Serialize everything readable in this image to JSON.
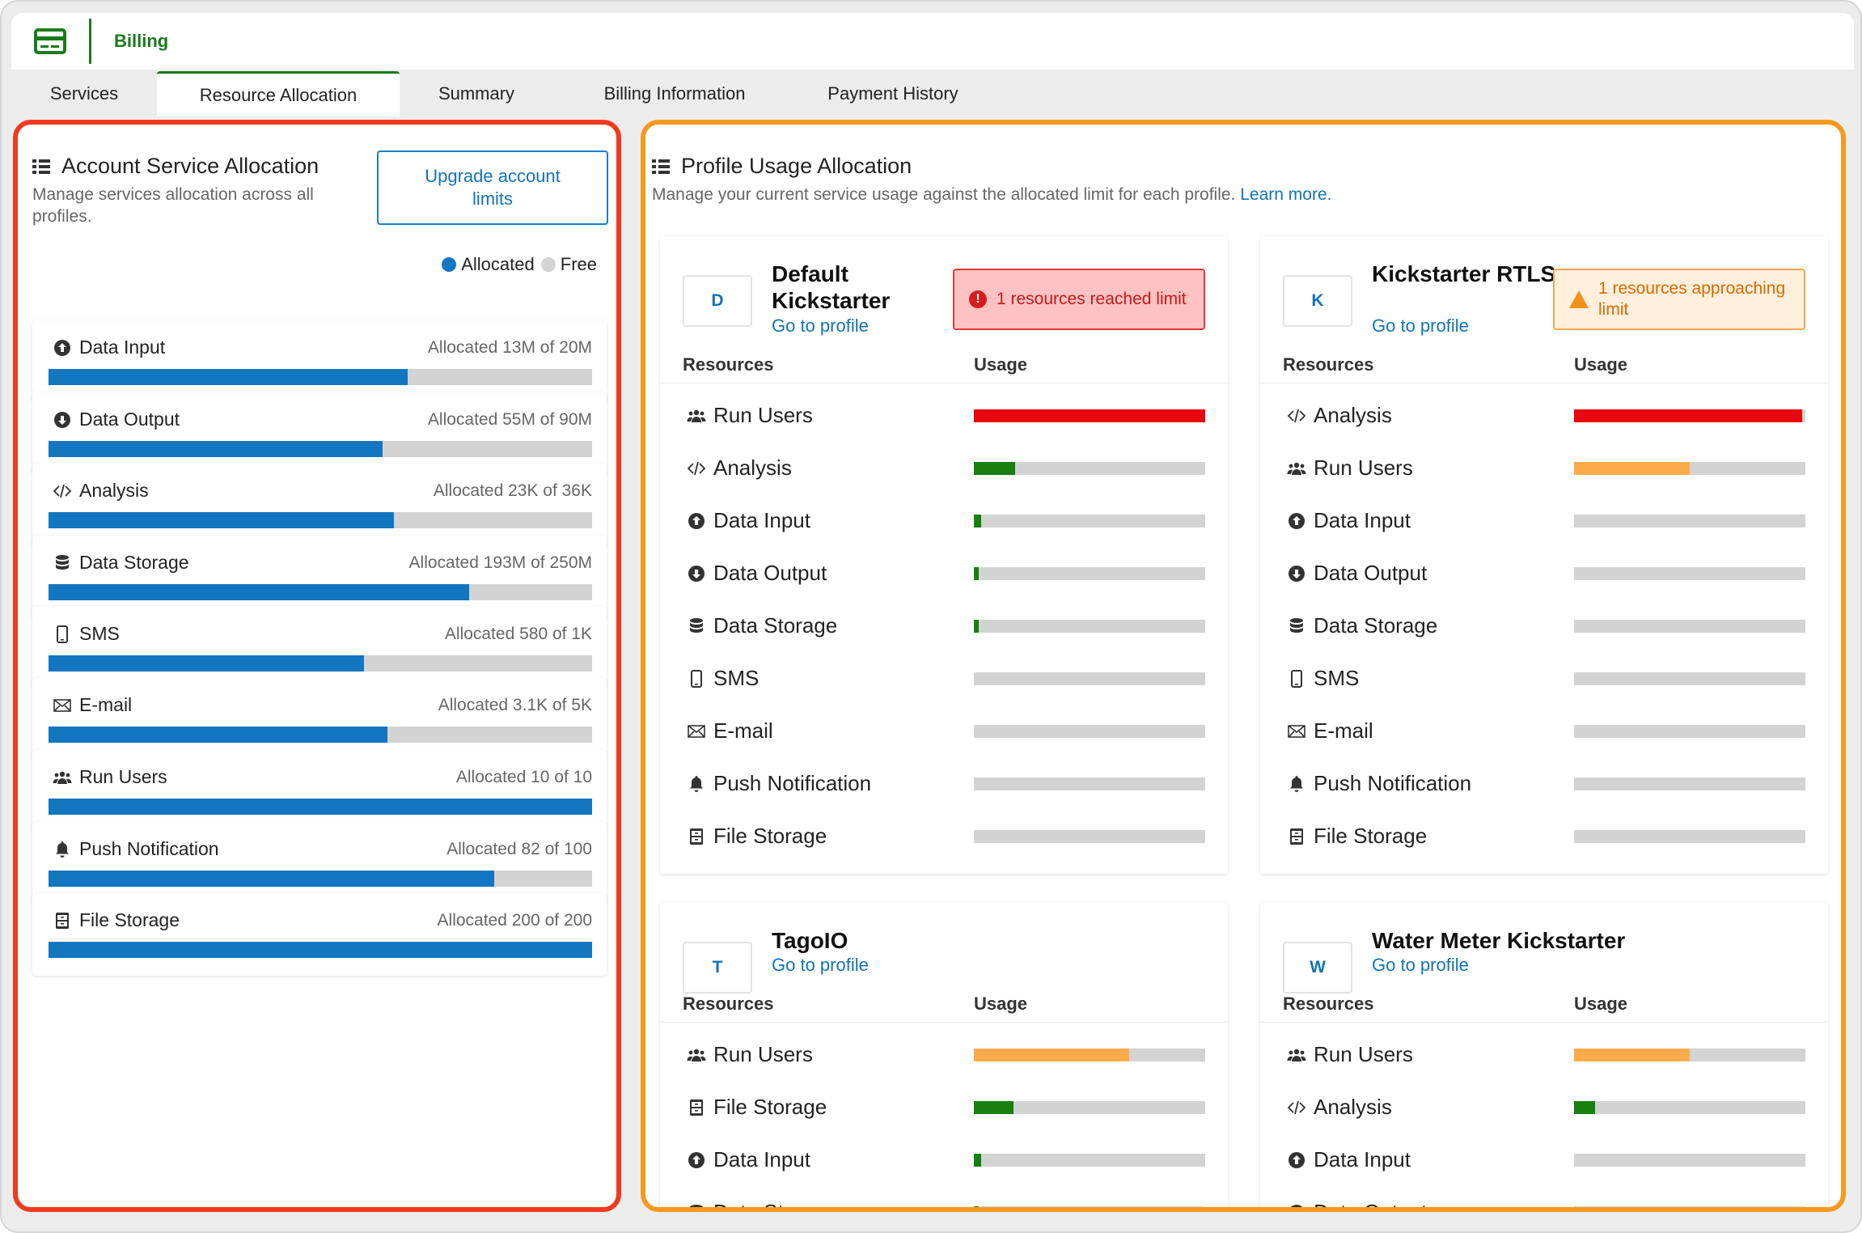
{
  "header": {
    "title": "Billing",
    "icon": "credit-card-icon"
  },
  "tabs": [
    {
      "label": "Services",
      "active": false
    },
    {
      "label": "Resource Allocation",
      "active": true
    },
    {
      "label": "Summary",
      "active": false
    },
    {
      "label": "Billing Information",
      "active": false
    },
    {
      "label": "Payment History",
      "active": false
    }
  ],
  "colors": {
    "brand": "#1b7a1b",
    "allocated": "#1376c1",
    "free": "#d3d3d3",
    "danger": "#e8050d",
    "warning": "#fcab4a",
    "ok": "#17800f",
    "link": "#1273b8"
  },
  "account": {
    "title": "Account Service Allocation",
    "subtitle": "Manage services allocation across all profiles.",
    "upgrade_label": "Upgrade account limits",
    "legend": {
      "allocated": "Allocated",
      "free": "Free"
    },
    "services": [
      {
        "name": "Data Input",
        "icon": "upload-circle-icon",
        "amount": "Allocated 13M of 20M",
        "fraction": 0.66
      },
      {
        "name": "Data Output",
        "icon": "download-circle-icon",
        "amount": "Allocated 55M of 90M",
        "fraction": 0.614
      },
      {
        "name": "Analysis",
        "icon": "code-icon",
        "amount": "Allocated 23K of 36K",
        "fraction": 0.636
      },
      {
        "name": "Data Storage",
        "icon": "database-icon",
        "amount": "Allocated 193M of 250M",
        "fraction": 0.774
      },
      {
        "name": "SMS",
        "icon": "mobile-phone-icon",
        "amount": "Allocated 580 of 1K",
        "fraction": 0.58
      },
      {
        "name": "E-mail",
        "icon": "envelope-icon",
        "amount": "Allocated 3.1K of 5K",
        "fraction": 0.624
      },
      {
        "name": "Run Users",
        "icon": "users-icon",
        "amount": "Allocated 10 of 10",
        "fraction": 1.0
      },
      {
        "name": "Push Notification",
        "icon": "bell-icon",
        "amount": "Allocated 82 of 100",
        "fraction": 0.82
      },
      {
        "name": "File Storage",
        "icon": "file-cabinet-icon",
        "amount": "Allocated 200 of 200",
        "fraction": 1.0
      }
    ]
  },
  "profiles_panel": {
    "title": "Profile Usage Allocation",
    "subtitle": "Manage your current service usage against the allocated limit for each profile.",
    "learn_more": "Learn more.",
    "col_resources": "Resources",
    "col_usage": "Usage",
    "go_to_profile": "Go to profile",
    "profiles": [
      {
        "initial": "D",
        "name": "Default Kickstarter",
        "badge": {
          "type": "red",
          "text": "1 resources reached limit"
        },
        "resources": [
          {
            "name": "Run Users",
            "icon": "users-icon",
            "usage": 1.0,
            "level": "danger"
          },
          {
            "name": "Analysis",
            "icon": "code-icon",
            "usage": 0.18,
            "level": "ok"
          },
          {
            "name": "Data Input",
            "icon": "upload-circle-icon",
            "usage": 0.03,
            "level": "ok"
          },
          {
            "name": "Data Output",
            "icon": "download-circle-icon",
            "usage": 0.02,
            "level": "ok"
          },
          {
            "name": "Data Storage",
            "icon": "database-icon",
            "usage": 0.02,
            "level": "ok"
          },
          {
            "name": "SMS",
            "icon": "mobile-phone-icon",
            "usage": 0,
            "level": "ok"
          },
          {
            "name": "E-mail",
            "icon": "envelope-icon",
            "usage": 0,
            "level": "ok"
          },
          {
            "name": "Push Notification",
            "icon": "bell-icon",
            "usage": 0,
            "level": "ok"
          },
          {
            "name": "File Storage",
            "icon": "file-cabinet-icon",
            "usage": 0,
            "level": "ok"
          }
        ]
      },
      {
        "initial": "K",
        "name": "Kickstarter RTLS",
        "badge": {
          "type": "orange",
          "text": "1 resources approaching limit"
        },
        "resources": [
          {
            "name": "Analysis",
            "icon": "code-icon",
            "usage": 0.985,
            "level": "danger"
          },
          {
            "name": "Run Users",
            "icon": "users-icon",
            "usage": 0.5,
            "level": "warning"
          },
          {
            "name": "Data Input",
            "icon": "upload-circle-icon",
            "usage": 0,
            "level": "ok"
          },
          {
            "name": "Data Output",
            "icon": "download-circle-icon",
            "usage": 0,
            "level": "ok"
          },
          {
            "name": "Data Storage",
            "icon": "database-icon",
            "usage": 0,
            "level": "ok"
          },
          {
            "name": "SMS",
            "icon": "mobile-phone-icon",
            "usage": 0,
            "level": "ok"
          },
          {
            "name": "E-mail",
            "icon": "envelope-icon",
            "usage": 0,
            "level": "ok"
          },
          {
            "name": "Push Notification",
            "icon": "bell-icon",
            "usage": 0,
            "level": "ok"
          },
          {
            "name": "File Storage",
            "icon": "file-cabinet-icon",
            "usage": 0,
            "level": "ok"
          }
        ]
      },
      {
        "initial": "T",
        "name": "TagoIO",
        "badge": null,
        "resources": [
          {
            "name": "Run Users",
            "icon": "users-icon",
            "usage": 0.67,
            "level": "warning"
          },
          {
            "name": "File Storage",
            "icon": "file-cabinet-icon",
            "usage": 0.17,
            "level": "ok"
          },
          {
            "name": "Data Input",
            "icon": "upload-circle-icon",
            "usage": 0.03,
            "level": "ok"
          },
          {
            "name": "Data Storage",
            "icon": "database-icon",
            "usage": 0.02,
            "level": "ok"
          }
        ]
      },
      {
        "initial": "W",
        "name": "Water Meter Kickstarter",
        "badge": null,
        "resources": [
          {
            "name": "Run Users",
            "icon": "users-icon",
            "usage": 0.5,
            "level": "warning"
          },
          {
            "name": "Analysis",
            "icon": "code-icon",
            "usage": 0.09,
            "level": "ok"
          },
          {
            "name": "Data Input",
            "icon": "upload-circle-icon",
            "usage": 0,
            "level": "ok"
          },
          {
            "name": "Data Output",
            "icon": "download-circle-icon",
            "usage": 0,
            "level": "ok"
          }
        ]
      }
    ]
  }
}
